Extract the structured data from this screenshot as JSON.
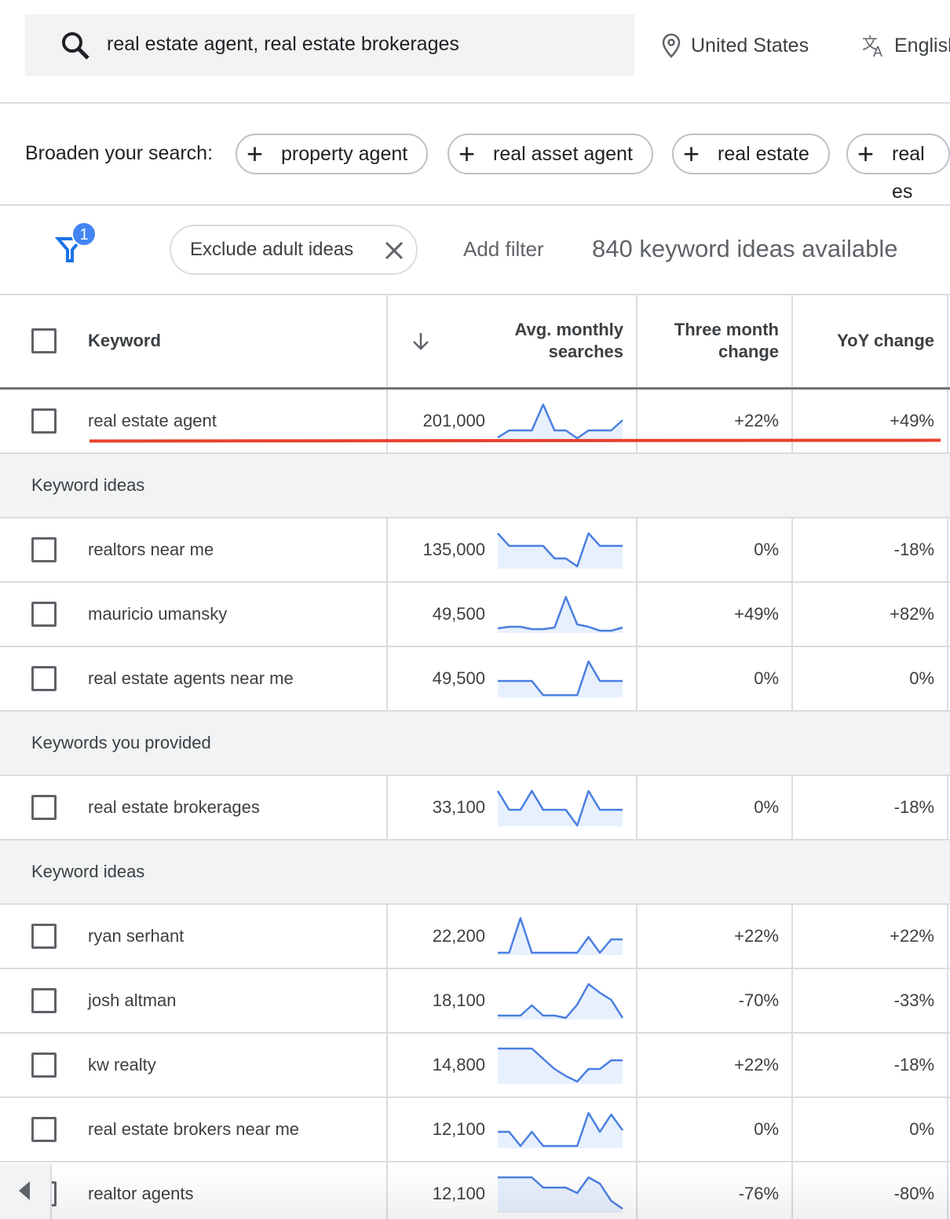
{
  "search": {
    "query": "real estate agent, real estate brokerages",
    "location": "United States",
    "language": "English"
  },
  "broaden": {
    "label": "Broaden your search:",
    "chips": [
      "property agent",
      "real asset agent",
      "real estate",
      "real es"
    ]
  },
  "filters": {
    "badge": "1",
    "chip": "Exclude adult ideas",
    "add": "Add filter",
    "count": "840 keyword ideas available"
  },
  "table": {
    "headers": {
      "keyword": "Keyword",
      "searches": "Avg. monthly searches",
      "three_month": "Three month change",
      "yoy": "YoY change"
    },
    "rows": [
      {
        "keyword": "real estate agent",
        "searches": "201,000",
        "three_month": "+22%",
        "yoy": "+49%",
        "trend": [
          3,
          12,
          12,
          12,
          45,
          12,
          12,
          2,
          12,
          12,
          12,
          25
        ]
      },
      {
        "section": "Keyword ideas"
      },
      {
        "keyword": "realtors near me",
        "searches": "135,000",
        "three_month": "0%",
        "yoy": "-18%",
        "trend": [
          45,
          29,
          29,
          29,
          29,
          13,
          13,
          3,
          45,
          29,
          29,
          29
        ]
      },
      {
        "keyword": "mauricio umansky",
        "searches": "49,500",
        "three_month": "+49%",
        "yoy": "+82%",
        "trend": [
          6,
          8,
          8,
          5,
          5,
          7,
          46,
          11,
          8,
          3,
          3,
          7
        ]
      },
      {
        "keyword": "real estate agents near me",
        "searches": "49,500",
        "three_month": "0%",
        "yoy": "0%",
        "trend": [
          21,
          21,
          21,
          21,
          3,
          3,
          3,
          3,
          46,
          21,
          21,
          21
        ]
      },
      {
        "section": "Keywords you provided"
      },
      {
        "keyword": "real estate brokerages",
        "searches": "33,100",
        "three_month": "0%",
        "yoy": "-18%",
        "trend": [
          45,
          21,
          21,
          45,
          21,
          21,
          21,
          1,
          45,
          21,
          21,
          21
        ]
      },
      {
        "section": "Keyword ideas"
      },
      {
        "keyword": "ryan serhant",
        "searches": "22,200",
        "three_month": "+22%",
        "yoy": "+22%",
        "trend": [
          3,
          3,
          47,
          3,
          3,
          3,
          3,
          3,
          23,
          3,
          20,
          20
        ]
      },
      {
        "keyword": "josh altman",
        "searches": "18,100",
        "three_month": "-70%",
        "yoy": "-33%",
        "trend": [
          5,
          5,
          5,
          18,
          5,
          5,
          2,
          19,
          45,
          34,
          25,
          2
        ]
      },
      {
        "keyword": "kw realty",
        "searches": "14,800",
        "three_month": "+22%",
        "yoy": "-18%",
        "trend": [
          45,
          45,
          45,
          45,
          32,
          19,
          10,
          3,
          19,
          19,
          30,
          30
        ]
      },
      {
        "keyword": "real estate brokers near me",
        "searches": "12,100",
        "three_month": "0%",
        "yoy": "0%",
        "trend": [
          21,
          21,
          3,
          21,
          3,
          3,
          3,
          3,
          45,
          21,
          43,
          23
        ]
      },
      {
        "keyword": "realtor agents",
        "searches": "12,100",
        "three_month": "-76%",
        "yoy": "-80%",
        "trend": [
          45,
          45,
          45,
          45,
          32,
          32,
          32,
          25,
          45,
          37,
          15,
          5
        ]
      }
    ]
  }
}
